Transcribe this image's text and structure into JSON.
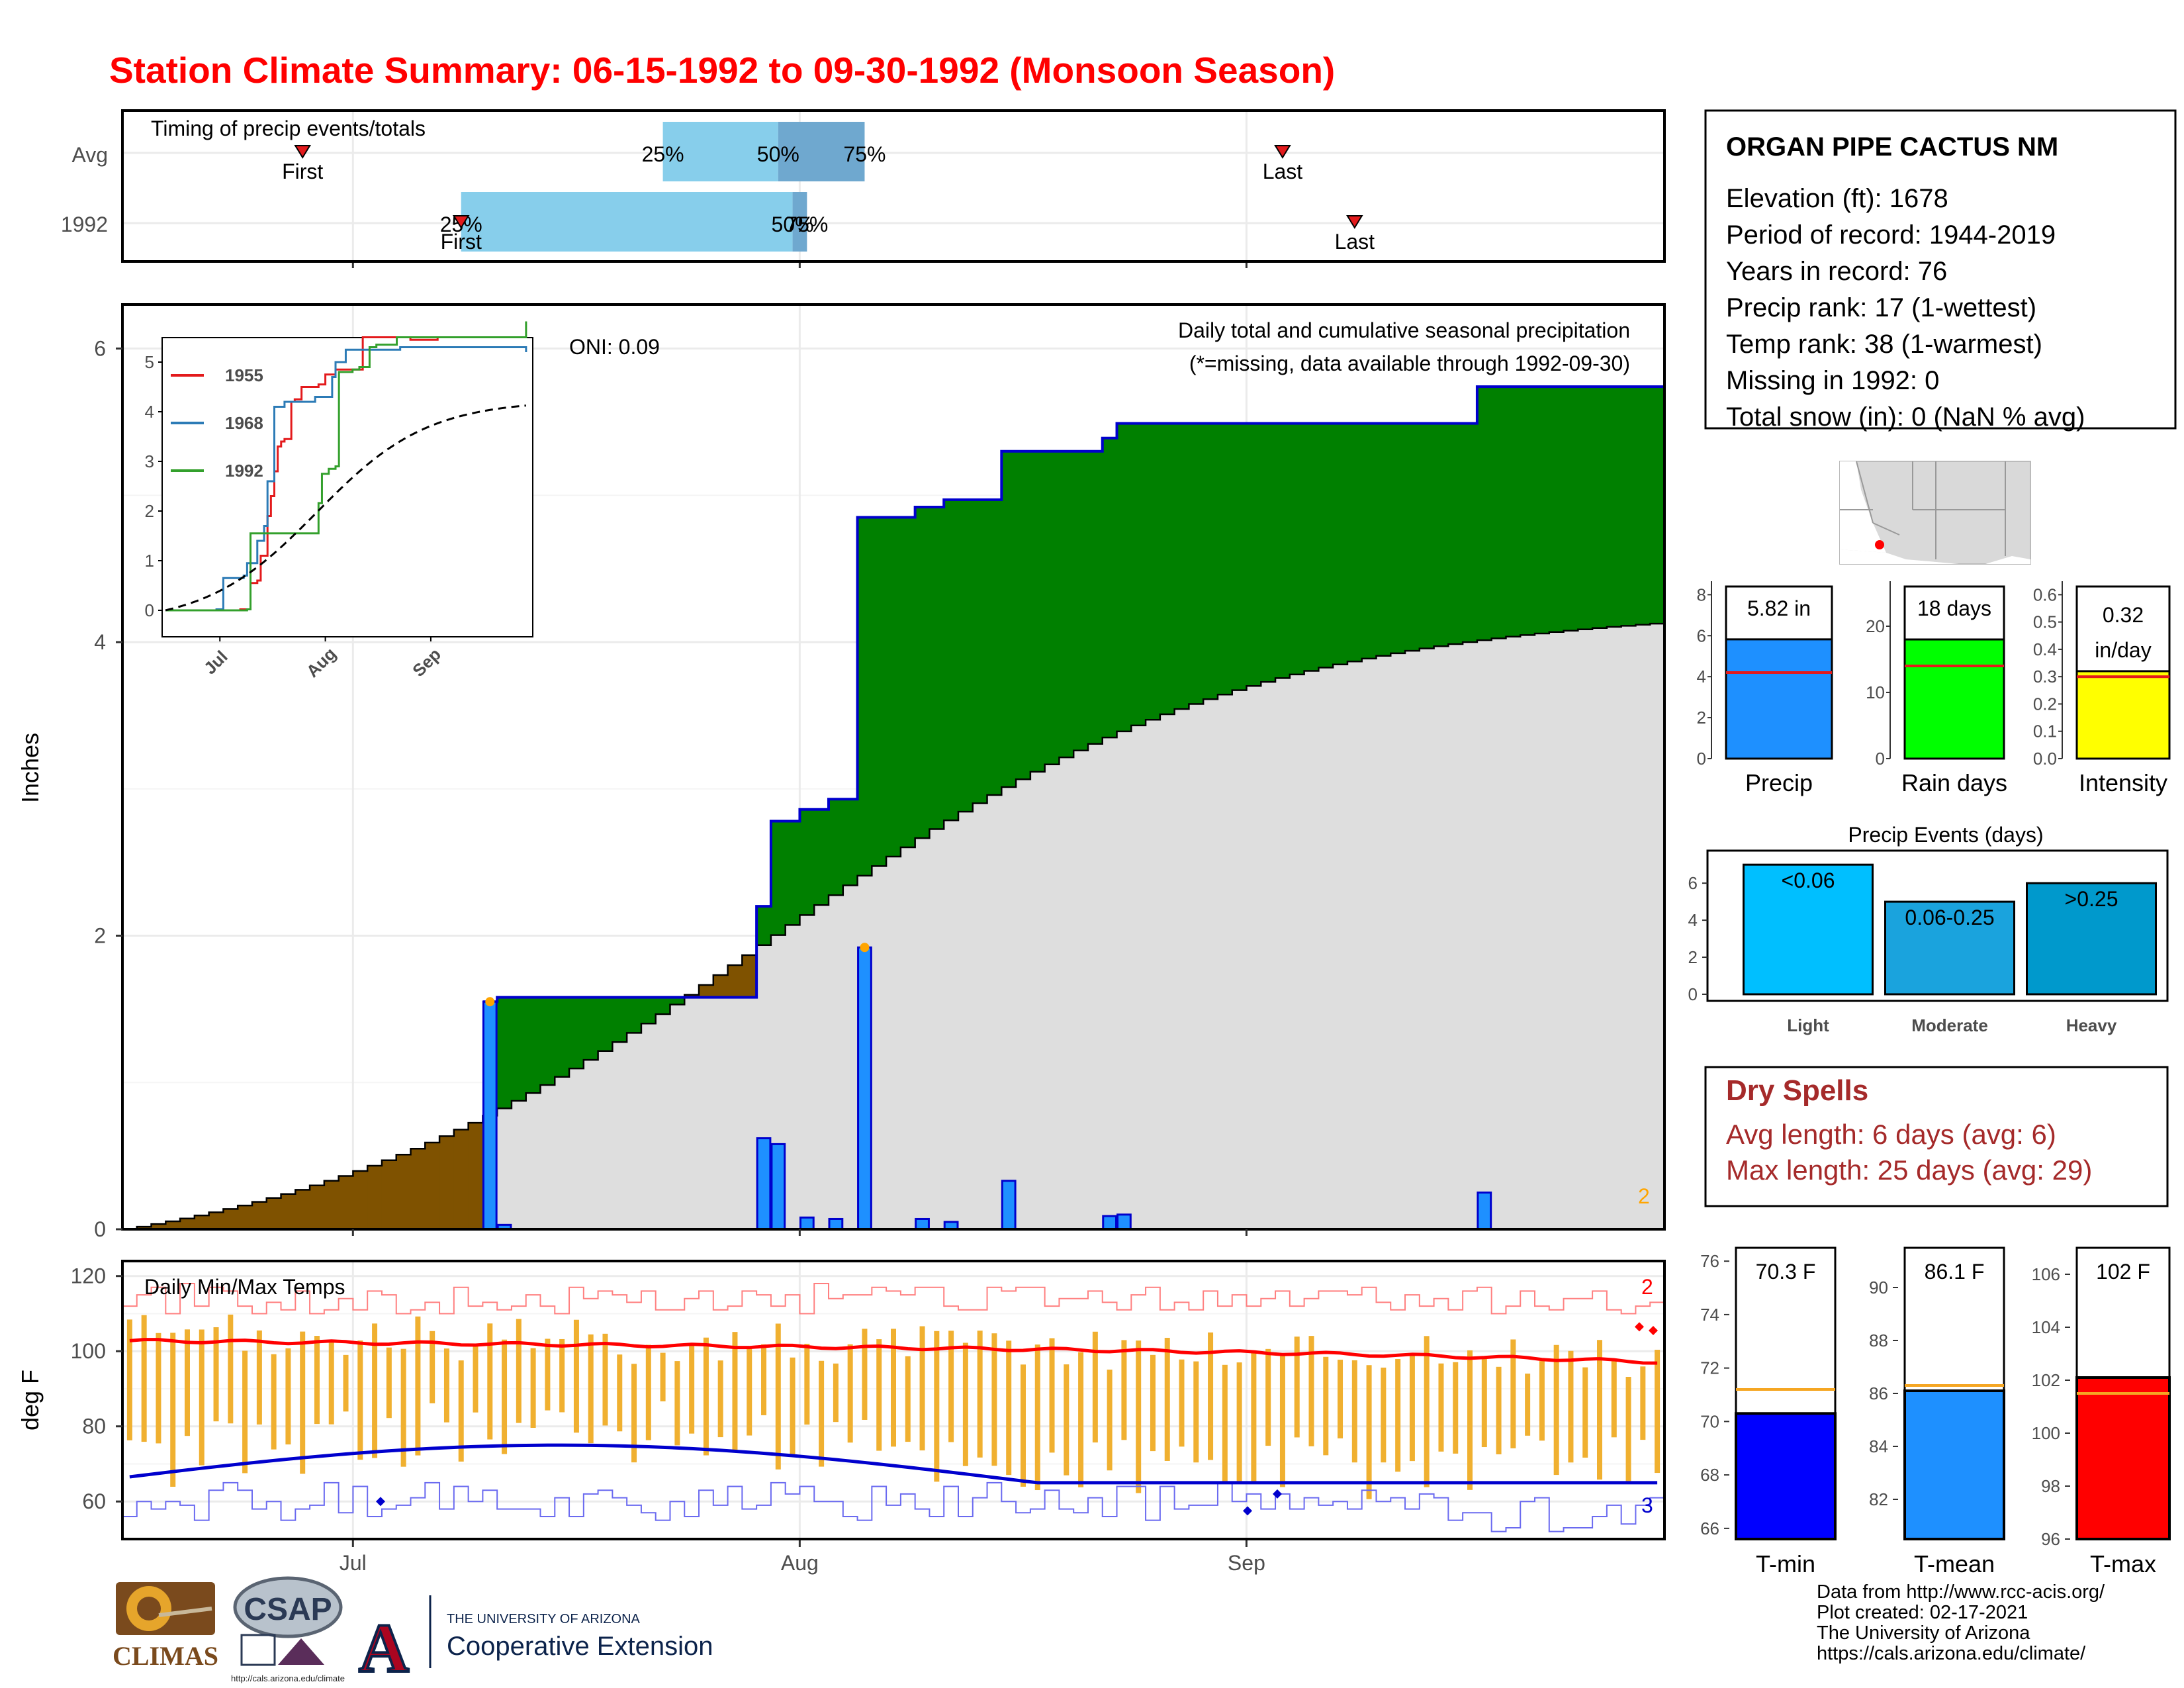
{
  "title": "Station Climate Summary: 06-15-1992 to 09-30-1992 (Monsoon Season)",
  "timing": {
    "label": "Timing of precip events/totals",
    "rows": [
      "Avg",
      "1992"
    ],
    "avg": {
      "first": 12,
      "p25": 37,
      "p50": 45,
      "p75": 51,
      "last": 80
    },
    "y1992": {
      "first": 23,
      "p25": 23,
      "p50": 46,
      "p75": 47,
      "last": 85
    },
    "first_label": "First",
    "last_label": "Last",
    "p25_label": "25%",
    "p50_label": "50%",
    "p75_label": "75%"
  },
  "info": {
    "station": "ORGAN PIPE CACTUS NM",
    "lines": [
      "Elevation (ft): 1678",
      "Period of record: 1944-2019",
      "Years in record: 76",
      "Precip rank: 17 (1-wettest)",
      "Temp rank: 38 (1-warmest)",
      "Missing in 1992: 0",
      "Total snow (in): 0 (NaN % avg)"
    ]
  },
  "main": {
    "ylabel": "Inches",
    "oni": "ONI: 0.09",
    "caption": "Daily total and cumulative seasonal precipitation",
    "missing_note": "(*=missing, data available through 1992-09-30)",
    "corner_count": "2",
    "x_ticks": [
      "Jul",
      "Aug",
      "Sep"
    ],
    "y_ticks": [
      "0",
      "2",
      "4",
      "6"
    ]
  },
  "inset": {
    "legend": [
      "1955",
      "1968",
      "1992"
    ],
    "colors": [
      "#e31a1c",
      "#2c7bb6",
      "#33a02c"
    ],
    "y_ticks": [
      "0",
      "1",
      "2",
      "3",
      "4",
      "5"
    ],
    "x_ticks": [
      "Jul",
      "Aug",
      "Sep"
    ]
  },
  "temps": {
    "label": "Daily Min/Max Temps",
    "ylabel": "deg F",
    "y_ticks": [
      "60",
      "80",
      "100",
      "120"
    ],
    "x_ticks": [
      "Jul",
      "Aug",
      "Sep"
    ],
    "count_max": "2",
    "count_min": "3"
  },
  "bars": {
    "precip": {
      "value_label": "5.82 in",
      "name": "Precip",
      "value": 5.82,
      "avg": 4.2,
      "y_ticks": [
        "0",
        "2",
        "4",
        "6",
        "8"
      ]
    },
    "raindays": {
      "value_label": "18 days",
      "name": "Rain days",
      "value": 18,
      "avg": 14,
      "y_ticks": [
        "0",
        "10",
        "20"
      ]
    },
    "intensity": {
      "value_label_1": "0.32",
      "value_label_2": "in/day",
      "name": "Intensity",
      "value": 0.32,
      "avg": 0.3,
      "y_ticks": [
        "0.0",
        "0.1",
        "0.2",
        "0.3",
        "0.4",
        "0.5",
        "0.6"
      ]
    }
  },
  "events": {
    "title": "Precip Events (days)",
    "y_ticks": [
      "0",
      "2",
      "4",
      "6"
    ],
    "categories": [
      "Light",
      "Moderate",
      "Heavy"
    ],
    "labels": [
      "<0.06",
      "0.06-0.25",
      ">0.25"
    ],
    "values": [
      7,
      5,
      6
    ]
  },
  "dry": {
    "title": "Dry Spells",
    "avg": "Avg length: 6 days (avg: 6)",
    "max": "Max length: 25 days (avg: 29)"
  },
  "tbars": {
    "tmin": {
      "label": "70.3 F",
      "name": "T-min",
      "value": 70.3,
      "avg": 71.2,
      "y_ticks": [
        "66",
        "68",
        "70",
        "72",
        "74",
        "76"
      ]
    },
    "tmean": {
      "label": "86.1 F",
      "name": "T-mean",
      "value": 86.1,
      "avg": 86.3,
      "y_ticks": [
        "82",
        "84",
        "86",
        "88",
        "90"
      ]
    },
    "tmax": {
      "label": "102 F",
      "name": "T-max",
      "value": 102.1,
      "avg": 101.5,
      "y_ticks": [
        "96",
        "98",
        "100",
        "102",
        "104",
        "106"
      ]
    }
  },
  "footer": [
    "Data from http://www.rcc-acis.org/",
    "Plot created: 02-17-2021",
    "The University of Arizona",
    "https://cals.arizona.edu/climate/"
  ],
  "logos": {
    "climas": "CLIMAS",
    "csap": "CSAP",
    "csap_url": "http://cals.arizona.edu/climate",
    "ua_small": "THE UNIVERSITY OF ARIZONA",
    "ua_big": "Cooperative Extension",
    "ua_letter": "A"
  },
  "chart_data": [
    {
      "type": "area",
      "title": "Daily total and cumulative seasonal precipitation",
      "ylabel": "Inches",
      "ylim": [
        0,
        6.3
      ],
      "x_label_ticks": [
        "Jul",
        "Aug",
        "Sep"
      ],
      "daily_precip": [
        {
          "date": "1992-07-10",
          "value": 1.55
        },
        {
          "date": "1992-07-11",
          "value": 0.03
        },
        {
          "date": "1992-07-29",
          "value": 0.62
        },
        {
          "date": "1992-07-30",
          "value": 0.58
        },
        {
          "date": "1992-08-01",
          "value": 0.08
        },
        {
          "date": "1992-08-03",
          "value": 0.07
        },
        {
          "date": "1992-08-05",
          "value": 1.92
        },
        {
          "date": "1992-08-09",
          "value": 0.07
        },
        {
          "date": "1992-08-11",
          "value": 0.05
        },
        {
          "date": "1992-08-15",
          "value": 0.33
        },
        {
          "date": "1992-08-22",
          "value": 0.09
        },
        {
          "date": "1992-08-23",
          "value": 0.1
        },
        {
          "date": "1992-09-17",
          "value": 0.25
        }
      ],
      "cumulative_1992_final": 5.82,
      "cumulative_avg_final": 4.15
    },
    {
      "type": "line",
      "title": "Daily Min/Max Temps",
      "ylabel": "deg F",
      "ylim": [
        52,
        122
      ],
      "avg_max_range": [
        97,
        103
      ],
      "avg_min_range": [
        63,
        75
      ]
    },
    {
      "type": "bar",
      "categories": [
        "Light",
        "Moderate",
        "Heavy"
      ],
      "values": [
        7,
        5,
        6
      ],
      "title": "Precip Events (days)"
    }
  ]
}
